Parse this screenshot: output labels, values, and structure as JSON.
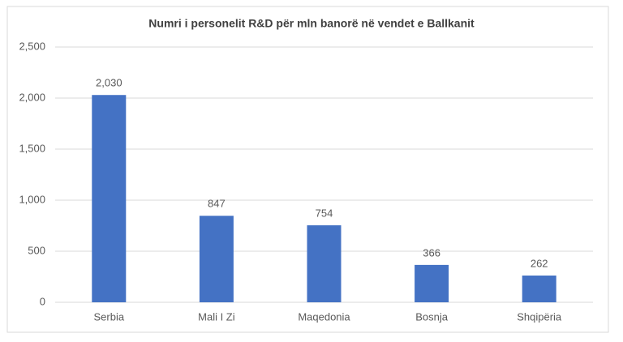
{
  "chart_data": {
    "type": "bar",
    "title": "Numri i personelit R&D për mln banorë në vendet e Ballkanit",
    "categories": [
      "Serbia",
      "Mali I Zi",
      "Maqedonia",
      "Bosnja",
      "Shqipëria"
    ],
    "values": [
      2030,
      847,
      754,
      366,
      262
    ],
    "value_labels": [
      "2,030",
      "847",
      "754",
      "366",
      "262"
    ],
    "color": "#4472c4",
    "ylim": [
      0,
      2500
    ],
    "yticks": [
      0,
      500,
      {
        "value": 1000,
        "label": "1,000"
      },
      {
        "value": 1500,
        "label": "1,500"
      },
      {
        "value": 2000,
        "label": "2,000"
      },
      {
        "value": 2500,
        "label": "2,500"
      }
    ],
    "grid": true
  }
}
